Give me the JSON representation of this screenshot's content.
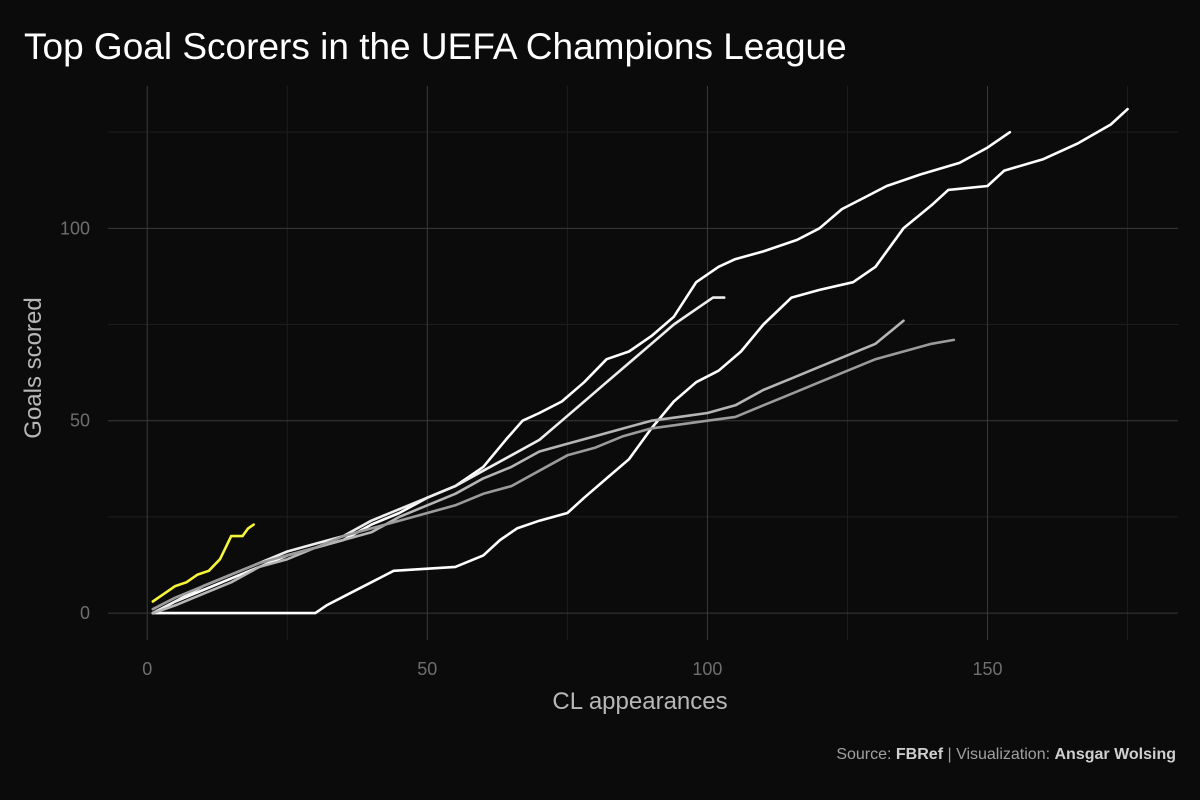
{
  "chart_data": {
    "type": "line",
    "title": "Top Goal Scorers in the UEFA Champions League",
    "xlabel": "CL appearances",
    "ylabel": "Goals scored",
    "xlim": [
      -7,
      184
    ],
    "ylim": [
      -7,
      137
    ],
    "xticks": [
      0,
      50,
      100,
      150
    ],
    "yticks": [
      0,
      50,
      100
    ],
    "grid": true,
    "highlight_color": "#f5f53a",
    "series": [
      {
        "color": "#ffffff",
        "highlight": false,
        "points": [
          [
            1,
            0
          ],
          [
            30,
            0
          ],
          [
            32,
            2
          ],
          [
            36,
            5
          ],
          [
            40,
            8
          ],
          [
            44,
            11
          ],
          [
            55,
            12
          ],
          [
            60,
            15
          ],
          [
            63,
            19
          ],
          [
            66,
            22
          ],
          [
            70,
            24
          ],
          [
            75,
            26
          ],
          [
            78,
            30
          ],
          [
            82,
            35
          ],
          [
            86,
            40
          ],
          [
            90,
            48
          ],
          [
            94,
            55
          ],
          [
            98,
            60
          ],
          [
            102,
            63
          ],
          [
            106,
            68
          ],
          [
            110,
            75
          ],
          [
            115,
            82
          ],
          [
            120,
            84
          ],
          [
            126,
            86
          ],
          [
            130,
            90
          ],
          [
            135,
            100
          ],
          [
            140,
            106
          ],
          [
            143,
            110
          ],
          [
            150,
            111
          ],
          [
            153,
            115
          ],
          [
            160,
            118
          ],
          [
            166,
            122
          ],
          [
            172,
            127
          ],
          [
            175,
            131
          ]
        ]
      },
      {
        "color": "#ffffff",
        "highlight": false,
        "points": [
          [
            1,
            0
          ],
          [
            5,
            3
          ],
          [
            10,
            6
          ],
          [
            15,
            9
          ],
          [
            20,
            12
          ],
          [
            25,
            15
          ],
          [
            30,
            17
          ],
          [
            35,
            19
          ],
          [
            40,
            23
          ],
          [
            45,
            26
          ],
          [
            50,
            30
          ],
          [
            55,
            33
          ],
          [
            60,
            38
          ],
          [
            64,
            45
          ],
          [
            67,
            50
          ],
          [
            70,
            52
          ],
          [
            74,
            55
          ],
          [
            78,
            60
          ],
          [
            82,
            66
          ],
          [
            86,
            68
          ],
          [
            90,
            72
          ],
          [
            94,
            77
          ],
          [
            98,
            86
          ],
          [
            102,
            90
          ],
          [
            105,
            92
          ],
          [
            110,
            94
          ],
          [
            116,
            97
          ],
          [
            120,
            100
          ],
          [
            124,
            105
          ],
          [
            128,
            108
          ],
          [
            132,
            111
          ],
          [
            138,
            114
          ],
          [
            145,
            117
          ],
          [
            150,
            121
          ],
          [
            154,
            125
          ]
        ]
      },
      {
        "color": "#eeeeee",
        "highlight": false,
        "points": [
          [
            1,
            0
          ],
          [
            5,
            3
          ],
          [
            10,
            7
          ],
          [
            15,
            10
          ],
          [
            20,
            13
          ],
          [
            25,
            16
          ],
          [
            30,
            18
          ],
          [
            35,
            20
          ],
          [
            40,
            24
          ],
          [
            45,
            27
          ],
          [
            50,
            30
          ],
          [
            55,
            33
          ],
          [
            60,
            37
          ],
          [
            65,
            41
          ],
          [
            70,
            45
          ],
          [
            74,
            50
          ],
          [
            78,
            55
          ],
          [
            82,
            60
          ],
          [
            86,
            65
          ],
          [
            90,
            70
          ],
          [
            94,
            75
          ],
          [
            98,
            79
          ],
          [
            101,
            82
          ],
          [
            103,
            82
          ]
        ]
      },
      {
        "color": "#b5b5b5",
        "highlight": false,
        "points": [
          [
            1,
            0
          ],
          [
            5,
            2
          ],
          [
            10,
            5
          ],
          [
            15,
            8
          ],
          [
            20,
            12
          ],
          [
            25,
            14
          ],
          [
            30,
            17
          ],
          [
            35,
            19
          ],
          [
            40,
            21
          ],
          [
            45,
            25
          ],
          [
            50,
            28
          ],
          [
            55,
            31
          ],
          [
            60,
            35
          ],
          [
            65,
            38
          ],
          [
            70,
            42
          ],
          [
            75,
            44
          ],
          [
            80,
            46
          ],
          [
            85,
            48
          ],
          [
            90,
            50
          ],
          [
            95,
            51
          ],
          [
            100,
            52
          ],
          [
            105,
            54
          ],
          [
            110,
            58
          ],
          [
            115,
            61
          ],
          [
            120,
            64
          ],
          [
            125,
            67
          ],
          [
            130,
            70
          ],
          [
            135,
            76
          ]
        ]
      },
      {
        "color": "#9b9b9b",
        "highlight": false,
        "points": [
          [
            1,
            1
          ],
          [
            5,
            4
          ],
          [
            10,
            7
          ],
          [
            15,
            10
          ],
          [
            20,
            13
          ],
          [
            25,
            15
          ],
          [
            30,
            17
          ],
          [
            35,
            20
          ],
          [
            40,
            22
          ],
          [
            45,
            24
          ],
          [
            50,
            26
          ],
          [
            55,
            28
          ],
          [
            60,
            31
          ],
          [
            65,
            33
          ],
          [
            70,
            37
          ],
          [
            75,
            41
          ],
          [
            80,
            43
          ],
          [
            85,
            46
          ],
          [
            90,
            48
          ],
          [
            95,
            49
          ],
          [
            100,
            50
          ],
          [
            105,
            51
          ],
          [
            110,
            54
          ],
          [
            115,
            57
          ],
          [
            120,
            60
          ],
          [
            125,
            63
          ],
          [
            130,
            66
          ],
          [
            135,
            68
          ],
          [
            140,
            70
          ],
          [
            144,
            71
          ]
        ]
      },
      {
        "color": "#f5f53a",
        "highlight": true,
        "points": [
          [
            1,
            3
          ],
          [
            3,
            5
          ],
          [
            5,
            7
          ],
          [
            7,
            8
          ],
          [
            9,
            10
          ],
          [
            11,
            11
          ],
          [
            13,
            14
          ],
          [
            14,
            17
          ],
          [
            15,
            20
          ],
          [
            17,
            20
          ],
          [
            18,
            22
          ],
          [
            19,
            23
          ]
        ]
      }
    ]
  },
  "caption": {
    "prefix": "Source: ",
    "source": "FBRef",
    "middle": " | Visualization: ",
    "author": "Ansgar Wolsing"
  }
}
